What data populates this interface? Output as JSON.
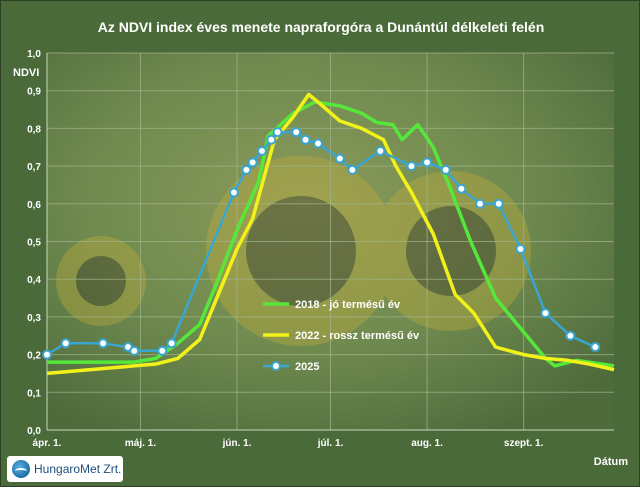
{
  "title": "Az NDVI index éves menete napraforgóra a Dunántúl délkeleti felén",
  "logo_text": "HungaroMet Zrt.",
  "colors": {
    "background": "#4a6a3a",
    "plot_background": "#6f8a4f",
    "series_2018": "#55e83b",
    "series_2022": "#f2f21a",
    "series_2025": "#3aa6d0"
  },
  "chart_data": {
    "type": "line",
    "title": "Az NDVI index éves menete napraforgóra a Dunántúl délkeleti felén",
    "xlabel": "Dátum",
    "ylabel": "NDVI",
    "ylim": [
      0,
      1.0
    ],
    "yticks": [
      "0,0",
      "0,1",
      "0,2",
      "0,3",
      "0,4",
      "0,5",
      "0,6",
      "0,7",
      "0,8",
      "0,9",
      "1,0"
    ],
    "xlim": [
      "2025-04-01",
      "2025-09-30"
    ],
    "xticks": [
      {
        "label": "ápr. 1.",
        "date": "2025-04-01"
      },
      {
        "label": "máj. 1.",
        "date": "2025-05-01"
      },
      {
        "label": "jún. 1.",
        "date": "2025-06-01"
      },
      {
        "label": "júl. 1.",
        "date": "2025-07-01"
      },
      {
        "label": "aug. 1.",
        "date": "2025-08-01"
      },
      {
        "label": "szept. 1.",
        "date": "2025-09-01"
      }
    ],
    "grid": true,
    "legend_position": "center",
    "series": [
      {
        "name": "2018 - jó termésű év",
        "markers": false,
        "points": [
          [
            "2025-04-01",
            0.18
          ],
          [
            "2025-04-15",
            0.18
          ],
          [
            "2025-04-29",
            0.18
          ],
          [
            "2025-05-06",
            0.19
          ],
          [
            "2025-05-13",
            0.23
          ],
          [
            "2025-05-20",
            0.28
          ],
          [
            "2025-05-25",
            0.38
          ],
          [
            "2025-06-01",
            0.53
          ],
          [
            "2025-06-08",
            0.66
          ],
          [
            "2025-06-11",
            0.78
          ],
          [
            "2025-06-19",
            0.84
          ],
          [
            "2025-06-26",
            0.87
          ],
          [
            "2025-07-04",
            0.86
          ],
          [
            "2025-07-11",
            0.84
          ],
          [
            "2025-07-16",
            0.815
          ],
          [
            "2025-07-21",
            0.81
          ],
          [
            "2025-07-24",
            0.77
          ],
          [
            "2025-07-29",
            0.81
          ],
          [
            "2025-08-03",
            0.75
          ],
          [
            "2025-08-08",
            0.65
          ],
          [
            "2025-08-15",
            0.5
          ],
          [
            "2025-08-23",
            0.35
          ],
          [
            "2025-08-31",
            0.27
          ],
          [
            "2025-09-08",
            0.19
          ],
          [
            "2025-09-11",
            0.17
          ],
          [
            "2025-09-18",
            0.185
          ],
          [
            "2025-09-30",
            0.17
          ]
        ]
      },
      {
        "name": "2022 - rossz termésű év",
        "markers": false,
        "points": [
          [
            "2025-04-01",
            0.15
          ],
          [
            "2025-04-22",
            0.165
          ],
          [
            "2025-05-06",
            0.175
          ],
          [
            "2025-05-13",
            0.19
          ],
          [
            "2025-05-20",
            0.24
          ],
          [
            "2025-05-27",
            0.38
          ],
          [
            "2025-06-01",
            0.48
          ],
          [
            "2025-06-06",
            0.56
          ],
          [
            "2025-06-13",
            0.77
          ],
          [
            "2025-06-19",
            0.83
          ],
          [
            "2025-06-24",
            0.89
          ],
          [
            "2025-06-27",
            0.87
          ],
          [
            "2025-07-04",
            0.82
          ],
          [
            "2025-07-11",
            0.8
          ],
          [
            "2025-07-18",
            0.77
          ],
          [
            "2025-07-22",
            0.7
          ],
          [
            "2025-07-27",
            0.63
          ],
          [
            "2025-08-03",
            0.52
          ],
          [
            "2025-08-10",
            0.36
          ],
          [
            "2025-08-16",
            0.31
          ],
          [
            "2025-08-23",
            0.22
          ],
          [
            "2025-09-01",
            0.2
          ],
          [
            "2025-09-08",
            0.19
          ],
          [
            "2025-09-15",
            0.185
          ],
          [
            "2025-09-22",
            0.175
          ],
          [
            "2025-09-30",
            0.16
          ]
        ]
      },
      {
        "name": "2025",
        "markers": true,
        "points": [
          [
            "2025-04-01",
            0.2
          ],
          [
            "2025-04-07",
            0.23
          ],
          [
            "2025-04-19",
            0.23
          ],
          [
            "2025-04-27",
            0.22
          ],
          [
            "2025-04-29",
            0.21
          ],
          [
            "2025-05-08",
            0.21
          ],
          [
            "2025-05-11",
            0.23
          ],
          [
            "2025-05-31",
            0.63
          ],
          [
            "2025-06-04",
            0.69
          ],
          [
            "2025-06-06",
            0.71
          ],
          [
            "2025-06-09",
            0.74
          ],
          [
            "2025-06-12",
            0.77
          ],
          [
            "2025-06-14",
            0.79
          ],
          [
            "2025-06-20",
            0.79
          ],
          [
            "2025-06-23",
            0.77
          ],
          [
            "2025-06-27",
            0.76
          ],
          [
            "2025-07-04",
            0.72
          ],
          [
            "2025-07-08",
            0.69
          ],
          [
            "2025-07-17",
            0.74
          ],
          [
            "2025-07-27",
            0.7
          ],
          [
            "2025-08-01",
            0.71
          ],
          [
            "2025-08-07",
            0.69
          ],
          [
            "2025-08-12",
            0.64
          ],
          [
            "2025-08-18",
            0.6
          ],
          [
            "2025-08-24",
            0.6
          ],
          [
            "2025-08-31",
            0.48
          ],
          [
            "2025-09-08",
            0.31
          ],
          [
            "2025-09-16",
            0.25
          ],
          [
            "2025-09-24",
            0.22
          ]
        ]
      }
    ]
  }
}
